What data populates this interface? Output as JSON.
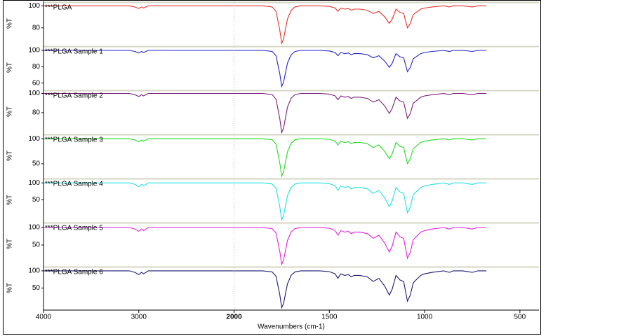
{
  "chart_data": [
    {
      "type": "line",
      "ylabel": "%T",
      "ylim": [
        64,
        104
      ],
      "yticks": [
        100,
        80
      ],
      "x": [
        4000,
        3800,
        3600,
        3400,
        3200,
        3100,
        3040,
        3000,
        2970,
        2950,
        2900,
        2800,
        2600,
        2400,
        2200,
        2000,
        1900,
        1850,
        1800,
        1780,
        1760,
        1750,
        1740,
        1720,
        1700,
        1680,
        1650,
        1600,
        1550,
        1500,
        1470,
        1455,
        1440,
        1420,
        1400,
        1385,
        1370,
        1340,
        1300,
        1270,
        1240,
        1210,
        1185,
        1170,
        1150,
        1130,
        1110,
        1090,
        1075,
        1060,
        1045,
        1020,
        1000,
        960,
        900,
        870,
        850,
        800,
        750,
        720,
        700,
        676
      ],
      "series": [
        {
          "name": "***PLGA",
          "color": "#e8302a",
          "values": [
            100,
            100,
            100,
            100,
            100,
            100,
            99,
            97.5,
            99,
            98,
            100,
            100,
            100,
            100,
            100,
            100,
            100,
            100,
            99,
            95,
            78,
            66,
            70,
            88,
            96,
            99,
            100,
            100,
            100,
            99.5,
            98,
            95,
            98,
            97,
            97.5,
            96,
            97,
            97,
            96,
            93,
            95,
            90,
            84,
            88,
            97,
            94,
            93,
            80,
            84,
            92,
            94,
            97,
            98,
            99,
            100,
            99,
            100,
            100,
            99,
            100,
            100,
            100
          ]
        }
      ]
    },
    {
      "type": "line",
      "ylabel": "%T",
      "ylim": [
        52,
        106
      ],
      "yticks": [
        100,
        80,
        60
      ],
      "x": [
        4000,
        3800,
        3600,
        3400,
        3200,
        3100,
        3040,
        3000,
        2970,
        2950,
        2900,
        2800,
        2600,
        2400,
        2200,
        2000,
        1900,
        1850,
        1800,
        1780,
        1760,
        1750,
        1740,
        1720,
        1700,
        1680,
        1650,
        1600,
        1550,
        1500,
        1470,
        1455,
        1440,
        1420,
        1400,
        1385,
        1370,
        1340,
        1300,
        1270,
        1240,
        1210,
        1185,
        1170,
        1150,
        1130,
        1110,
        1090,
        1075,
        1060,
        1045,
        1020,
        1000,
        960,
        900,
        870,
        850,
        800,
        750,
        720,
        700,
        676
      ],
      "series": [
        {
          "name": "***PLGA Sample 1",
          "color": "#2323c8",
          "values": [
            100,
            100,
            100,
            100,
            100,
            100,
            98.7,
            96.7,
            98.7,
            97.4,
            100,
            100,
            100,
            100,
            100,
            100,
            100,
            100,
            98.7,
            93.5,
            71.4,
            55.8,
            61,
            84.4,
            94.8,
            98.7,
            100,
            100,
            100,
            99.3,
            97.4,
            93.5,
            97.4,
            96.1,
            96.7,
            94.8,
            96.1,
            96.1,
            94.8,
            90.9,
            93.5,
            87,
            79.2,
            84.4,
            96.1,
            92.2,
            90.9,
            74,
            79.2,
            89.6,
            92.2,
            96.1,
            97.4,
            98.7,
            100,
            98.7,
            100,
            100,
            98.7,
            100,
            100,
            100
          ]
        }
      ]
    },
    {
      "type": "line",
      "ylabel": "%T",
      "ylim": [
        58,
        104
      ],
      "yticks": [
        100,
        80
      ],
      "x": [
        4000,
        3800,
        3600,
        3400,
        3200,
        3100,
        3040,
        3000,
        2970,
        2950,
        2900,
        2800,
        2600,
        2400,
        2200,
        2000,
        1900,
        1850,
        1800,
        1780,
        1760,
        1750,
        1740,
        1720,
        1700,
        1680,
        1650,
        1600,
        1550,
        1500,
        1470,
        1455,
        1440,
        1420,
        1400,
        1385,
        1370,
        1340,
        1300,
        1270,
        1240,
        1210,
        1185,
        1170,
        1150,
        1130,
        1110,
        1090,
        1075,
        1060,
        1045,
        1020,
        1000,
        960,
        900,
        870,
        850,
        800,
        750,
        720,
        700,
        676
      ],
      "series": [
        {
          "name": "***PLGA Sample 2",
          "color": "#7b1f7b",
          "values": [
            100,
            100,
            100,
            100,
            100,
            100,
            98.7,
            96.7,
            98.7,
            97.4,
            100,
            100,
            100,
            100,
            100,
            100,
            100,
            100,
            98.8,
            94,
            73.6,
            59.2,
            64,
            85.6,
            95.2,
            98.8,
            100,
            100,
            100,
            99.3,
            97.4,
            93.5,
            97.4,
            96.1,
            96.7,
            94.8,
            96.1,
            96.1,
            94.8,
            90.9,
            93.5,
            87,
            79.2,
            84.4,
            96.1,
            92.2,
            90.9,
            74,
            79.2,
            89.6,
            92.2,
            96.1,
            97.4,
            98.7,
            100,
            98.7,
            100,
            100,
            98.7,
            100,
            100,
            100
          ]
        }
      ]
    },
    {
      "type": "line",
      "ylabel": "%T",
      "ylim": [
        22,
        110
      ],
      "yticks": [
        100,
        50
      ],
      "x": [
        4000,
        3800,
        3600,
        3400,
        3200,
        3100,
        3040,
        3000,
        2970,
        2950,
        2900,
        2800,
        2600,
        2400,
        2200,
        2000,
        1900,
        1850,
        1800,
        1780,
        1760,
        1750,
        1740,
        1720,
        1700,
        1680,
        1650,
        1600,
        1550,
        1500,
        1470,
        1455,
        1440,
        1420,
        1400,
        1385,
        1370,
        1340,
        1300,
        1270,
        1240,
        1210,
        1185,
        1170,
        1150,
        1130,
        1110,
        1090,
        1075,
        1060,
        1045,
        1020,
        1000,
        960,
        900,
        870,
        850,
        800,
        750,
        720,
        700,
        676
      ],
      "series": [
        {
          "name": "***PLGA Sample 3",
          "color": "#22dd22",
          "values": [
            100,
            100,
            100,
            100,
            100,
            100,
            97.5,
            93.8,
            97.5,
            95,
            100,
            100,
            100,
            100,
            100,
            100,
            100,
            100,
            97.8,
            89,
            51.6,
            25.2,
            34,
            73.6,
            91.2,
            97.8,
            100,
            100,
            100,
            98.8,
            95,
            87.5,
            95,
            92.5,
            93.8,
            90,
            92.5,
            92.5,
            90,
            82.5,
            87.5,
            75,
            60,
            70,
            92.5,
            85,
            82.5,
            50,
            60,
            80,
            85,
            92.5,
            95,
            97.5,
            100,
            97.5,
            100,
            100,
            97.5,
            100,
            100,
            100
          ]
        }
      ]
    },
    {
      "type": "line",
      "ylabel": "%T",
      "ylim": [
        -15,
        115
      ],
      "yticks": [
        100,
        50
      ],
      "x": [
        4000,
        3800,
        3600,
        3400,
        3200,
        3100,
        3040,
        3000,
        2970,
        2950,
        2900,
        2800,
        2600,
        2400,
        2200,
        2000,
        1900,
        1850,
        1800,
        1780,
        1760,
        1750,
        1740,
        1720,
        1700,
        1680,
        1650,
        1600,
        1550,
        1500,
        1470,
        1455,
        1440,
        1420,
        1400,
        1385,
        1370,
        1340,
        1300,
        1270,
        1240,
        1210,
        1185,
        1170,
        1150,
        1130,
        1110,
        1090,
        1075,
        1060,
        1045,
        1020,
        1000,
        960,
        900,
        870,
        850,
        800,
        750,
        720,
        700,
        676
      ],
      "series": [
        {
          "name": "***PLGA Sample 4",
          "color": "#22e0e0",
          "values": [
            100,
            100,
            100,
            100,
            100,
            100,
            95.6,
            89,
            95.6,
            91.2,
            100,
            100,
            100,
            100,
            100,
            100,
            100,
            100,
            96.8,
            84,
            29.6,
            -8.8,
            4,
            61.6,
            87.2,
            96.8,
            100,
            100,
            100,
            97.8,
            91.2,
            78,
            91.2,
            86.8,
            89,
            82.4,
            86.8,
            86.8,
            82.4,
            69.2,
            78,
            56,
            29.6,
            47.2,
            86.8,
            73.6,
            69.2,
            12,
            29.6,
            64.8,
            73.6,
            86.8,
            91.2,
            95.6,
            100,
            95.6,
            100,
            100,
            95.6,
            100,
            100,
            100
          ]
        }
      ]
    },
    {
      "type": "line",
      "ylabel": "%T",
      "ylim": [
        -10,
        116
      ],
      "yticks": [
        100,
        50
      ],
      "x": [
        4000,
        3800,
        3600,
        3400,
        3200,
        3100,
        3040,
        3000,
        2970,
        2950,
        2900,
        2800,
        2600,
        2400,
        2200,
        2000,
        1900,
        1850,
        1800,
        1780,
        1760,
        1750,
        1740,
        1720,
        1700,
        1680,
        1650,
        1600,
        1550,
        1500,
        1470,
        1455,
        1440,
        1420,
        1400,
        1385,
        1370,
        1340,
        1300,
        1270,
        1240,
        1210,
        1185,
        1170,
        1150,
        1130,
        1110,
        1090,
        1075,
        1060,
        1045,
        1020,
        1000,
        960,
        900,
        870,
        850,
        800,
        750,
        720,
        700,
        676
      ],
      "series": [
        {
          "name": "***PLGA Sample 5",
          "color": "#e020e0",
          "values": [
            100,
            100,
            100,
            100,
            100,
            100,
            95.6,
            89,
            95.6,
            91.2,
            100,
            100,
            100,
            100,
            100,
            100,
            100,
            100,
            96.9,
            84.5,
            31.8,
            -5.4,
            7,
            62.8,
            87.6,
            96.9,
            100,
            100,
            100,
            97.8,
            91.2,
            78,
            91.2,
            86.8,
            89,
            82.4,
            86.8,
            86.8,
            82.4,
            69.2,
            78,
            56,
            29.6,
            47.2,
            86.8,
            73.6,
            69.2,
            12,
            29.6,
            64.8,
            73.6,
            86.8,
            91.2,
            95.6,
            100,
            95.6,
            100,
            100,
            95.6,
            100,
            100,
            100
          ]
        }
      ]
    },
    {
      "type": "line",
      "ylabel": "%T",
      "ylim": [
        -14,
        114
      ],
      "yticks": [
        100,
        50
      ],
      "xlim": [
        4000,
        400
      ],
      "xticks": [
        4000,
        3000,
        2000,
        1500,
        1000,
        500
      ],
      "xlabel": "Wavenumbers (cm-1)",
      "x": [
        4000,
        3800,
        3600,
        3400,
        3200,
        3100,
        3040,
        3000,
        2970,
        2950,
        2900,
        2800,
        2600,
        2400,
        2200,
        2000,
        1900,
        1850,
        1800,
        1780,
        1760,
        1750,
        1740,
        1720,
        1700,
        1680,
        1650,
        1600,
        1550,
        1500,
        1470,
        1455,
        1440,
        1420,
        1400,
        1385,
        1370,
        1340,
        1300,
        1270,
        1240,
        1210,
        1185,
        1170,
        1150,
        1130,
        1110,
        1090,
        1075,
        1060,
        1045,
        1020,
        1000,
        960,
        900,
        870,
        850,
        800,
        750,
        720,
        700,
        676
      ],
      "series": [
        {
          "name": "***PLGA Sample 6",
          "color": "#1b1b72",
          "values": [
            100,
            100,
            100,
            100,
            100,
            100,
            95.6,
            89,
            95.6,
            91.2,
            100,
            100,
            100,
            100,
            100,
            100,
            100,
            100,
            96.85,
            84.25,
            30.7,
            -7.1,
            5.5,
            62.2,
            87.4,
            96.85,
            100,
            100,
            100,
            97.8,
            91.2,
            78,
            91.2,
            86.8,
            89,
            82.4,
            86.8,
            86.8,
            82.4,
            69.2,
            78,
            56,
            29.6,
            47.2,
            86.8,
            73.6,
            69.2,
            12,
            29.6,
            64.8,
            73.6,
            86.8,
            91.2,
            95.6,
            100,
            95.6,
            100,
            100,
            95.6,
            100,
            100,
            100
          ]
        }
      ]
    }
  ]
}
